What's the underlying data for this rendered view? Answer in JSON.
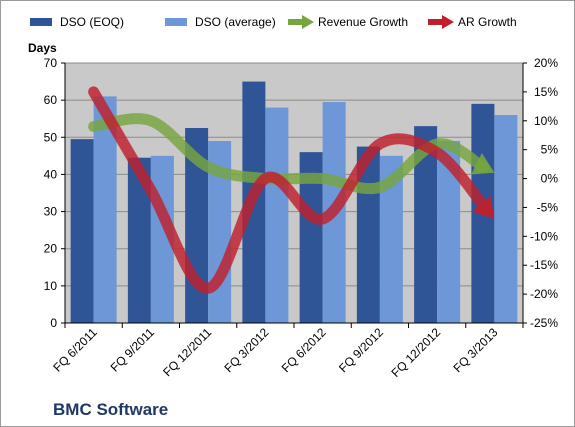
{
  "chart_data": {
    "type": "bar",
    "categories": [
      "FQ 6/2011",
      "FQ 9/2011",
      "FQ 12/2011",
      "FQ 3/2012",
      "FQ 6/2012",
      "FQ 9/2012",
      "FQ 12/2012",
      "FQ 3/2013"
    ],
    "series": [
      {
        "name": "DSO (EOQ)",
        "kind": "bar",
        "axis": "left",
        "color": "#2f5597",
        "values": [
          49.5,
          44.5,
          52.5,
          65,
          46,
          47.5,
          53,
          59
        ]
      },
      {
        "name": "DSO (average)",
        "kind": "bar",
        "axis": "left",
        "color": "#6d97d6",
        "values": [
          61,
          45,
          49,
          58,
          59.5,
          45,
          49,
          56
        ]
      },
      {
        "name": "Revenue Growth",
        "kind": "arrow-line",
        "axis": "right",
        "color": "#77a63f",
        "values": [
          9,
          10,
          2,
          0,
          0,
          -1.5,
          6,
          1
        ]
      },
      {
        "name": "AR Growth",
        "kind": "arrow-line",
        "axis": "right",
        "color": "#c0202c",
        "values": [
          15,
          -2,
          -19,
          0,
          -7,
          6,
          4.5,
          -7
        ]
      }
    ],
    "y_left": {
      "label": "Days",
      "min": 0,
      "max": 70,
      "step": 10,
      "ticks": [
        "0",
        "10",
        "20",
        "30",
        "40",
        "50",
        "60",
        "70"
      ]
    },
    "y_right": {
      "label": "",
      "min": -25,
      "max": 20,
      "step": 5,
      "ticks": [
        "-25%",
        "-20%",
        "-15%",
        "-10%",
        "-5%",
        "0%",
        "5%",
        "10%",
        "15%",
        "20%"
      ]
    },
    "grid": true,
    "legend_position": "top",
    "company": "BMC Software"
  },
  "colors": {
    "plot_background": "#c9c9c9",
    "gridline": "#8c8c8c",
    "frame": "#9a9a9a"
  }
}
